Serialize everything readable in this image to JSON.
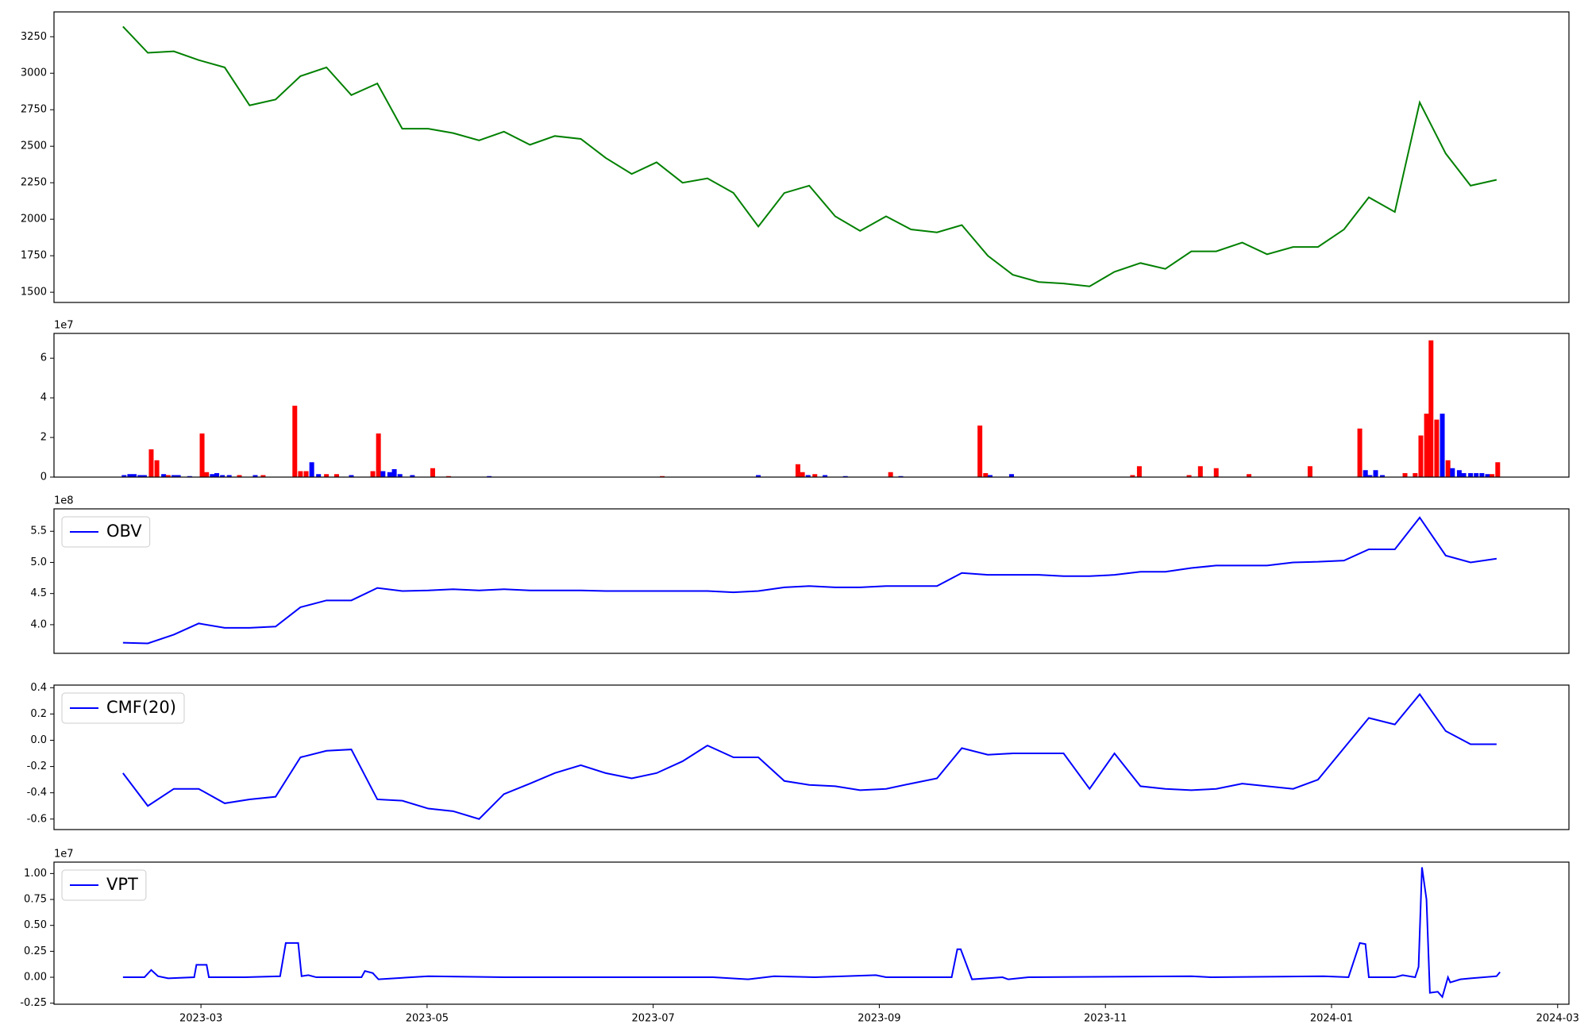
{
  "chart_data": [
    {
      "type": "line",
      "color": "green",
      "x": [
        1.31,
        1.53,
        1.76,
        1.98,
        2.21,
        2.43,
        2.66,
        2.88,
        3.11,
        3.33,
        3.56,
        3.78,
        4.01,
        4.23,
        4.46,
        4.68,
        4.91,
        5.13,
        5.36,
        5.58,
        5.81,
        6.03,
        6.26,
        6.48,
        6.71,
        6.93,
        7.16,
        7.38,
        7.61,
        7.83,
        8.06,
        8.28,
        8.51,
        8.73,
        8.96,
        9.18,
        9.41,
        9.63,
        9.86,
        10.08,
        10.31,
        10.53,
        10.76,
        10.98,
        11.21,
        11.43,
        11.66,
        11.88,
        12.11,
        12.33,
        12.56,
        12.78,
        13.01,
        13.23,
        13.46
      ],
      "values": [
        3320,
        3140,
        3150,
        3090,
        3040,
        2780,
        2820,
        2980,
        3040,
        2850,
        2930,
        2620,
        2620,
        2590,
        2540,
        2600,
        2510,
        2570,
        2550,
        2420,
        2310,
        2390,
        2250,
        2280,
        2180,
        1950,
        2180,
        2230,
        2020,
        1920,
        2020,
        1930,
        1910,
        1960,
        1750,
        1620,
        1570,
        1560,
        1540,
        1640,
        1700,
        1660,
        1780,
        1780,
        1840,
        1760,
        1810,
        1810,
        1930,
        2150,
        2050,
        2800,
        2450,
        2230,
        2270
      ],
      "xlim": [
        0.7,
        14.1
      ],
      "ylim": [
        1430,
        3420
      ],
      "yticks": [
        1500,
        1750,
        2000,
        2250,
        2500,
        2750,
        3000,
        3250
      ]
    },
    {
      "type": "bar",
      "offset_text": "1e7",
      "x": [
        1.32,
        1.37,
        1.41,
        1.46,
        1.5,
        1.56,
        1.61,
        1.67,
        1.71,
        1.76,
        1.8,
        1.9,
        2.01,
        2.05,
        2.1,
        2.14,
        2.19,
        2.25,
        2.34,
        2.48,
        2.55,
        2.83,
        2.88,
        2.93,
        2.98,
        3.04,
        3.11,
        3.2,
        3.33,
        3.52,
        3.57,
        3.61,
        3.67,
        3.71,
        3.76,
        3.87,
        4.05,
        4.19,
        4.55,
        6.08,
        6.93,
        7.28,
        7.32,
        7.37,
        7.43,
        7.52,
        7.7,
        8.1,
        8.19,
        8.89,
        8.94,
        8.98,
        9.17,
        10.24,
        10.3,
        10.74,
        10.84,
        10.98,
        11.27,
        11.81,
        12.25,
        12.3,
        12.34,
        12.39,
        12.45,
        12.65,
        12.74,
        12.79,
        12.84,
        12.88,
        12.93,
        12.98,
        13.03,
        13.07,
        13.13,
        13.17,
        13.23,
        13.28,
        13.33,
        13.38,
        13.42,
        13.47
      ],
      "values": [
        0.1,
        0.15,
        0.15,
        0.1,
        0.1,
        1.4,
        0.85,
        0.15,
        0.1,
        0.1,
        0.1,
        0.05,
        2.2,
        0.25,
        0.15,
        0.2,
        0.1,
        0.1,
        0.1,
        0.1,
        0.1,
        3.6,
        0.3,
        0.3,
        0.75,
        0.15,
        0.15,
        0.15,
        0.1,
        0.3,
        2.2,
        0.3,
        0.25,
        0.4,
        0.15,
        0.1,
        0.45,
        0.05,
        0.05,
        0.05,
        0.1,
        0.65,
        0.25,
        0.1,
        0.15,
        0.1,
        0.05,
        0.25,
        0.05,
        2.6,
        0.2,
        0.1,
        0.15,
        0.1,
        0.55,
        0.1,
        0.55,
        0.45,
        0.15,
        0.55,
        2.45,
        0.35,
        0.1,
        0.35,
        0.1,
        0.2,
        0.2,
        2.1,
        3.2,
        6.9,
        2.9,
        3.2,
        0.85,
        0.45,
        0.35,
        0.2,
        0.2,
        0.2,
        0.2,
        0.15,
        0.15,
        0.75
      ],
      "colors": [
        "blue",
        "blue",
        "blue",
        "blue",
        "blue",
        "red",
        "red",
        "blue",
        "red",
        "blue",
        "blue",
        "blue",
        "red",
        "red",
        "blue",
        "blue",
        "blue",
        "blue",
        "red",
        "blue",
        "red",
        "red",
        "red",
        "red",
        "blue",
        "blue",
        "red",
        "red",
        "blue",
        "red",
        "red",
        "blue",
        "blue",
        "blue",
        "blue",
        "blue",
        "red",
        "red",
        "blue",
        "red",
        "blue",
        "red",
        "red",
        "blue",
        "red",
        "blue",
        "blue",
        "red",
        "blue",
        "red",
        "red",
        "blue",
        "blue",
        "red",
        "red",
        "red",
        "red",
        "red",
        "red",
        "red",
        "red",
        "blue",
        "blue",
        "blue",
        "blue",
        "red",
        "red",
        "red",
        "red",
        "red",
        "red",
        "blue",
        "red",
        "blue",
        "blue",
        "blue",
        "blue",
        "blue",
        "blue",
        "blue",
        "red",
        "red"
      ],
      "xlim": [
        0.7,
        14.1
      ],
      "ylim": [
        0,
        7.25
      ],
      "yticks": [
        0,
        2,
        4,
        6
      ]
    },
    {
      "type": "line",
      "offset_text": "1e8",
      "legend": "upper left",
      "x": [
        1.31,
        1.53,
        1.76,
        1.98,
        2.21,
        2.43,
        2.66,
        2.88,
        3.11,
        3.33,
        3.56,
        3.78,
        4.01,
        4.23,
        4.46,
        4.68,
        4.91,
        5.13,
        5.36,
        5.58,
        5.81,
        6.03,
        6.26,
        6.48,
        6.71,
        6.93,
        7.16,
        7.38,
        7.61,
        7.83,
        8.06,
        8.28,
        8.51,
        8.73,
        8.96,
        9.18,
        9.41,
        9.63,
        9.86,
        10.08,
        10.31,
        10.53,
        10.76,
        10.98,
        11.21,
        11.43,
        11.66,
        11.88,
        12.11,
        12.33,
        12.56,
        12.78,
        13.01,
        13.23,
        13.46
      ],
      "series": [
        {
          "name": "OBV",
          "color": "blue",
          "values": [
            3.71,
            3.7,
            3.84,
            4.02,
            3.95,
            3.95,
            3.97,
            4.28,
            4.39,
            4.39,
            4.59,
            4.54,
            4.55,
            4.57,
            4.55,
            4.57,
            4.55,
            4.55,
            4.55,
            4.54,
            4.54,
            4.54,
            4.54,
            4.54,
            4.52,
            4.54,
            4.6,
            4.62,
            4.6,
            4.6,
            4.62,
            4.62,
            4.62,
            4.83,
            4.8,
            4.8,
            4.8,
            4.78,
            4.78,
            4.8,
            4.85,
            4.85,
            4.91,
            4.95,
            4.95,
            4.95,
            5.0,
            5.01,
            5.03,
            5.21,
            5.21,
            5.72,
            5.11,
            5.0,
            5.06
          ]
        }
      ],
      "xlim": [
        0.7,
        14.1
      ],
      "ylim": [
        3.54,
        5.86
      ],
      "yticks": [
        {
          "value": 4,
          "label": "4.0"
        },
        4.5,
        {
          "value": 5,
          "label": "5.0"
        },
        5.5
      ]
    },
    {
      "type": "line",
      "legend": "upper left",
      "x": [
        1.31,
        1.53,
        1.76,
        1.98,
        2.21,
        2.43,
        2.66,
        2.88,
        3.11,
        3.33,
        3.56,
        3.78,
        4.01,
        4.23,
        4.46,
        4.68,
        4.91,
        5.13,
        5.36,
        5.58,
        5.81,
        6.03,
        6.26,
        6.48,
        6.71,
        6.93,
        7.16,
        7.38,
        7.61,
        7.83,
        8.06,
        8.28,
        8.51,
        8.73,
        8.96,
        9.18,
        9.41,
        9.63,
        9.86,
        10.08,
        10.31,
        10.53,
        10.76,
        10.98,
        11.21,
        11.43,
        11.66,
        11.88,
        12.11,
        12.33,
        12.56,
        12.78,
        13.01,
        13.23,
        13.46
      ],
      "series": [
        {
          "name": "CMF(20)",
          "color": "blue",
          "values": [
            -0.25,
            -0.5,
            -0.37,
            -0.37,
            -0.48,
            -0.45,
            -0.43,
            -0.13,
            -0.08,
            -0.07,
            -0.45,
            -0.46,
            -0.52,
            -0.54,
            -0.6,
            -0.41,
            -0.33,
            -0.25,
            -0.19,
            -0.25,
            -0.29,
            -0.25,
            -0.16,
            -0.04,
            -0.13,
            -0.13,
            -0.31,
            -0.34,
            -0.35,
            -0.38,
            -0.37,
            -0.33,
            -0.29,
            -0.06,
            -0.11,
            -0.1,
            -0.1,
            -0.1,
            -0.37,
            -0.1,
            -0.35,
            -0.37,
            -0.38,
            -0.37,
            -0.33,
            -0.35,
            -0.37,
            -0.3,
            -0.06,
            0.17,
            0.12,
            0.35,
            0.07,
            -0.03,
            -0.03
          ]
        }
      ],
      "xlim": [
        0.7,
        14.1
      ],
      "ylim": [
        -0.68,
        0.42
      ],
      "yticks": [
        -0.6,
        -0.4,
        -0.2,
        {
          "value": 0,
          "label": "0.0"
        },
        0.2,
        0.4
      ]
    },
    {
      "type": "line",
      "offset_text": "1e7",
      "legend": "upper left",
      "x": [
        1.31,
        1.5,
        1.56,
        1.62,
        1.71,
        1.94,
        1.96,
        2.05,
        2.07,
        2.39,
        2.7,
        2.75,
        2.86,
        2.89,
        2.95,
        3.02,
        3.42,
        3.45,
        3.52,
        3.57,
        4.01,
        4.73,
        6.53,
        6.84,
        7.07,
        7.43,
        7.97,
        8.06,
        8.64,
        8.69,
        8.72,
        8.82,
        9.09,
        9.14,
        9.32,
        10.76,
        10.94,
        11.93,
        12.15,
        12.25,
        12.3,
        12.33,
        12.56,
        12.63,
        12.74,
        12.77,
        12.8,
        12.84,
        12.87,
        12.94,
        12.98,
        13.03,
        13.05,
        13.14,
        13.23,
        13.46,
        13.49
      ],
      "series": [
        {
          "name": "VPT",
          "color": "blue",
          "values": [
            0,
            0,
            0.07,
            0.01,
            -0.01,
            0,
            0.12,
            0.12,
            0,
            0,
            0.01,
            0.33,
            0.33,
            0.01,
            0.02,
            0,
            0,
            0.06,
            0.04,
            -0.02,
            0.01,
            0,
            0,
            -0.02,
            0.01,
            0,
            0.02,
            0,
            0,
            0.27,
            0.27,
            -0.02,
            0,
            -0.02,
            0,
            0.01,
            0,
            0.01,
            0,
            0.33,
            0.32,
            0,
            0,
            0.02,
            0,
            0.1,
            1.06,
            0.75,
            -0.15,
            -0.14,
            -0.19,
            0,
            -0.05,
            -0.02,
            -0.01,
            0.01,
            0.05
          ]
        }
      ],
      "xlim": [
        0.7,
        14.1
      ],
      "ylim": [
        -0.26,
        1.11
      ],
      "yticks": [
        -0.25,
        {
          "value": 0,
          "label": "0.00"
        },
        0.25,
        {
          "value": 0.5,
          "label": "0.50"
        },
        0.75,
        {
          "value": 1,
          "label": "1.00"
        }
      ],
      "xticks": [
        {
          "value": 2,
          "label": "2023-03"
        },
        {
          "value": 4,
          "label": "2023-05"
        },
        {
          "value": 6,
          "label": "2023-07"
        },
        {
          "value": 8,
          "label": "2023-09"
        },
        {
          "value": 10,
          "label": "2023-11"
        },
        {
          "value": 12,
          "label": "2024-01"
        },
        {
          "value": 14,
          "label": "2024-03"
        }
      ]
    }
  ]
}
